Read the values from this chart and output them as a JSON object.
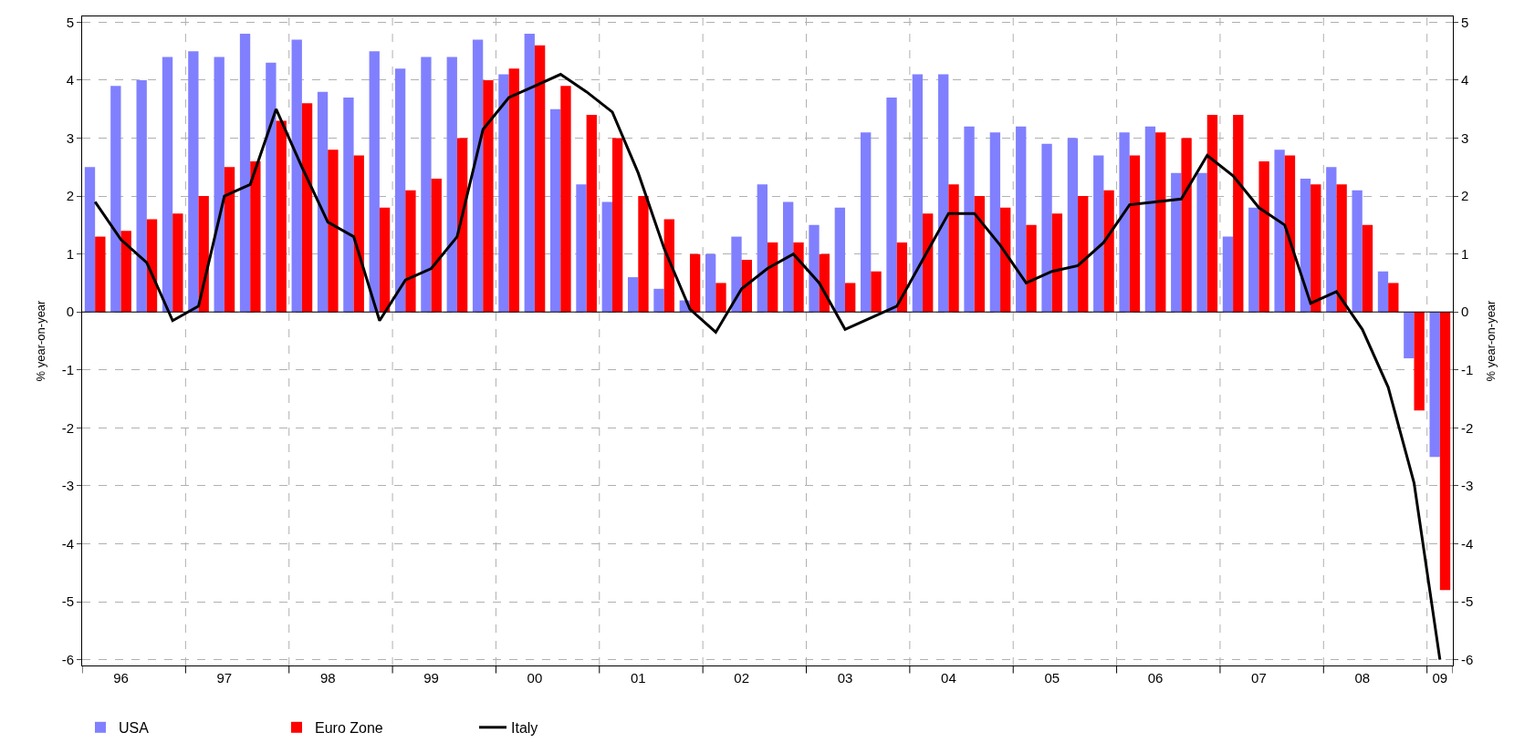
{
  "chart_data": {
    "type": "bar",
    "ylabel": "% year-on-year",
    "y2label": "% year-on-year",
    "categories": [
      null,
      "96",
      null,
      null,
      null,
      "97",
      null,
      null,
      null,
      "98",
      null,
      null,
      null,
      "99",
      null,
      null,
      null,
      "00",
      null,
      null,
      null,
      "01",
      null,
      null,
      null,
      "02",
      null,
      null,
      null,
      "03",
      null,
      null,
      null,
      "04",
      null,
      null,
      null,
      "05",
      null,
      null,
      null,
      "06",
      null,
      null,
      null,
      "07",
      null,
      null,
      null,
      "08",
      null,
      null,
      "09"
    ],
    "series": [
      {
        "name": "USA",
        "color": "#8080ff",
        "values": [
          2.5,
          3.9,
          4.0,
          4.4,
          4.5,
          4.4,
          4.8,
          4.3,
          4.7,
          3.8,
          3.7,
          4.5,
          4.2,
          4.4,
          4.4,
          4.7,
          4.1,
          4.8,
          3.5,
          2.2,
          1.9,
          0.6,
          0.4,
          0.2,
          1.0,
          1.3,
          2.2,
          1.9,
          1.5,
          1.8,
          3.1,
          3.7,
          4.1,
          4.1,
          3.2,
          3.1,
          3.2,
          2.9,
          3.0,
          2.7,
          3.1,
          3.2,
          2.4,
          2.4,
          1.3,
          1.8,
          2.8,
          2.3,
          2.5,
          2.1,
          0.7,
          -0.8,
          -2.5
        ]
      },
      {
        "name": "Euro Zone",
        "color": "#ff0000",
        "values": [
          1.3,
          1.4,
          1.6,
          1.7,
          2.0,
          2.5,
          2.6,
          3.3,
          3.6,
          2.8,
          2.7,
          1.8,
          2.1,
          2.3,
          3.0,
          4.0,
          4.2,
          4.6,
          3.9,
          3.4,
          3.0,
          2.0,
          1.6,
          1.0,
          0.5,
          0.9,
          1.2,
          1.2,
          1.0,
          0.5,
          0.7,
          1.2,
          1.7,
          2.2,
          2.0,
          1.8,
          1.5,
          1.7,
          2.0,
          2.1,
          2.7,
          3.1,
          3.0,
          3.4,
          3.4,
          2.6,
          2.7,
          2.2,
          2.2,
          1.5,
          0.5,
          -1.7,
          -4.8
        ]
      },
      {
        "name": "Italy",
        "color": "#000000",
        "type": "line",
        "values": [
          1.9,
          1.25,
          0.85,
          -0.15,
          0.1,
          2.0,
          2.2,
          3.5,
          2.5,
          1.55,
          1.3,
          -0.15,
          0.55,
          0.75,
          1.3,
          3.15,
          3.7,
          3.9,
          4.1,
          3.8,
          3.45,
          2.4,
          1.1,
          0.05,
          -0.35,
          0.4,
          0.75,
          1.0,
          0.5,
          -0.3,
          -0.1,
          0.1,
          0.9,
          1.7,
          1.7,
          1.15,
          0.5,
          0.7,
          0.8,
          1.2,
          1.85,
          1.9,
          1.95,
          2.7,
          2.35,
          1.8,
          1.5,
          0.15,
          0.35,
          -0.3,
          -1.3,
          -2.95,
          -6.0
        ]
      }
    ],
    "ylim": [
      -6.1,
      5.1
    ],
    "yticks": [
      -6,
      -5,
      -4,
      -3,
      -2,
      -1,
      0,
      1,
      2,
      3,
      4,
      5
    ],
    "y2lim": [
      -6.1,
      5.1
    ],
    "y2ticks": [
      -6,
      -5,
      -4,
      -3,
      -2,
      -1,
      0,
      1,
      2,
      3,
      4,
      5
    ],
    "grid": true,
    "legend": "bottom left",
    "line_style": "solid",
    "marker": "none"
  }
}
